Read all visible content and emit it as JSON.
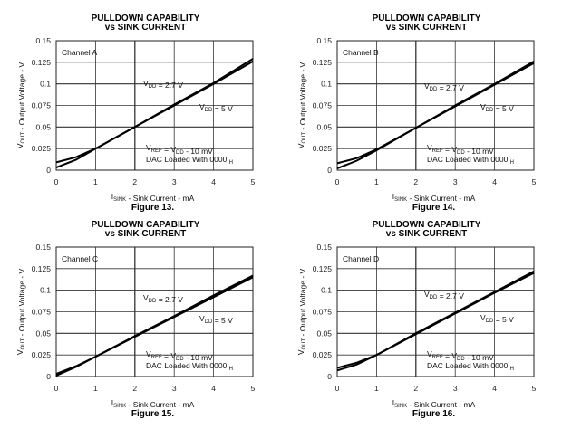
{
  "chart_data": [
    {
      "type": "line",
      "title": [
        "PULLDOWN CAPABILITY",
        "vs SINK CURRENT"
      ],
      "figure": "Figure 13.",
      "channel": "Channel A",
      "xlabel": {
        "main": "I",
        "sub": "SINK",
        "rest": " - Sink Current - mA"
      },
      "ylabel": {
        "main": "V",
        "sub": "OUT",
        "rest": " - Output Voltage - V"
      },
      "xlim": [
        0,
        5
      ],
      "ylim": [
        0,
        0.15
      ],
      "xticks": [
        "0",
        "1",
        "2",
        "3",
        "4",
        "5"
      ],
      "yticks": [
        "0",
        "0.025",
        "0.05",
        "0.075",
        "0.1",
        "0.125",
        "0.15"
      ],
      "grid": true,
      "x": [
        0,
        0.5,
        1,
        2,
        3,
        4,
        5
      ],
      "series": [
        {
          "name": "VDD = 2.7 V",
          "values": [
            0.009,
            0.015,
            0.025,
            0.05,
            0.075,
            0.1,
            0.126
          ]
        },
        {
          "name": "VDD = 5 V",
          "values": [
            0.003,
            0.012,
            0.025,
            0.05,
            0.076,
            0.101,
            0.129
          ]
        }
      ]
    },
    {
      "type": "line",
      "title": [
        "PULLDOWN CAPABILITY",
        "vs SINK CURRENT"
      ],
      "figure": "Figure 14.",
      "channel": "Channel B",
      "xlabel": {
        "main": "I",
        "sub": "SINK",
        "rest": " - Sink Current - mA"
      },
      "ylabel": {
        "main": "V",
        "sub": "OUT",
        "rest": " - Output Voltage - V"
      },
      "xlim": [
        0,
        5
      ],
      "ylim": [
        0,
        0.15
      ],
      "xticks": [
        "0",
        "1",
        "2",
        "3",
        "4",
        "5"
      ],
      "yticks": [
        "0",
        "0.025",
        "0.05",
        "0.075",
        "0.1",
        "0.125",
        "0.15"
      ],
      "grid": true,
      "x": [
        0,
        0.5,
        1,
        2,
        3,
        4,
        5
      ],
      "series": [
        {
          "name": "VDD = 2.7 V",
          "values": [
            0.008,
            0.014,
            0.024,
            0.049,
            0.074,
            0.099,
            0.124
          ]
        },
        {
          "name": "VDD = 5 V",
          "values": [
            0.002,
            0.011,
            0.023,
            0.049,
            0.075,
            0.1,
            0.126
          ]
        }
      ]
    },
    {
      "type": "line",
      "title": [
        "PULLDOWN CAPABILITY",
        "vs SINK CURRENT"
      ],
      "figure": "Figure 15.",
      "channel": "Channel C",
      "xlabel": {
        "main": "I",
        "sub": "SINK",
        "rest": " - Sink Current - mA"
      },
      "ylabel": {
        "main": "V",
        "sub": "OUT",
        "rest": " - Output Voltage - V"
      },
      "xlim": [
        0,
        5
      ],
      "ylim": [
        0,
        0.15
      ],
      "xticks": [
        "0",
        "1",
        "2",
        "3",
        "4",
        "5"
      ],
      "yticks": [
        "0",
        "0.025",
        "0.05",
        "0.075",
        "0.1",
        "0.125",
        "0.15"
      ],
      "grid": true,
      "x": [
        0,
        0.5,
        1,
        2,
        3,
        4,
        5
      ],
      "series": [
        {
          "name": "VDD = 2.7 V",
          "values": [
            0.003,
            0.012,
            0.023,
            0.046,
            0.069,
            0.092,
            0.115
          ]
        },
        {
          "name": "VDD = 5 V",
          "values": [
            0.001,
            0.011,
            0.023,
            0.047,
            0.07,
            0.094,
            0.117
          ]
        }
      ]
    },
    {
      "type": "line",
      "title": [
        "PULLDOWN CAPABILITY",
        "vs SINK CURRENT"
      ],
      "figure": "Figure 16.",
      "channel": "Channel D",
      "xlabel": {
        "main": "I",
        "sub": "SINK",
        "rest": " - Sink Current - mA"
      },
      "ylabel": {
        "main": "V",
        "sub": "OUT",
        "rest": " - Output Voltage - V"
      },
      "xlim": [
        0,
        5
      ],
      "ylim": [
        0,
        0.15
      ],
      "xticks": [
        "0",
        "1",
        "2",
        "3",
        "4",
        "5"
      ],
      "yticks": [
        "0",
        "0.025",
        "0.05",
        "0.075",
        "0.1",
        "0.125",
        "0.15"
      ],
      "grid": true,
      "x": [
        0,
        0.5,
        1,
        2,
        3,
        4,
        5
      ],
      "series": [
        {
          "name": "VDD = 2.7 V",
          "values": [
            0.01,
            0.016,
            0.025,
            0.049,
            0.073,
            0.097,
            0.12
          ]
        },
        {
          "name": "VDD = 5 V",
          "values": [
            0.007,
            0.014,
            0.025,
            0.05,
            0.074,
            0.098,
            0.122
          ]
        }
      ]
    }
  ],
  "annotations": {
    "vdd27": [
      [
        "V",
        ""
      ],
      [
        "DD",
        "sub"
      ],
      [
        " = 2.7 V",
        ""
      ]
    ],
    "vdd5": [
      [
        "V",
        ""
      ],
      [
        "DD",
        "sub"
      ],
      [
        " = 5 V",
        ""
      ]
    ],
    "vref": [
      [
        "V",
        ""
      ],
      [
        "REF",
        "sub"
      ],
      [
        " = V",
        ""
      ],
      [
        "DD",
        "sub"
      ],
      [
        " - 10 mV",
        ""
      ]
    ],
    "dac": [
      [
        "DAC Loaded With 0000 ",
        ""
      ],
      [
        "H",
        "sub"
      ]
    ]
  }
}
